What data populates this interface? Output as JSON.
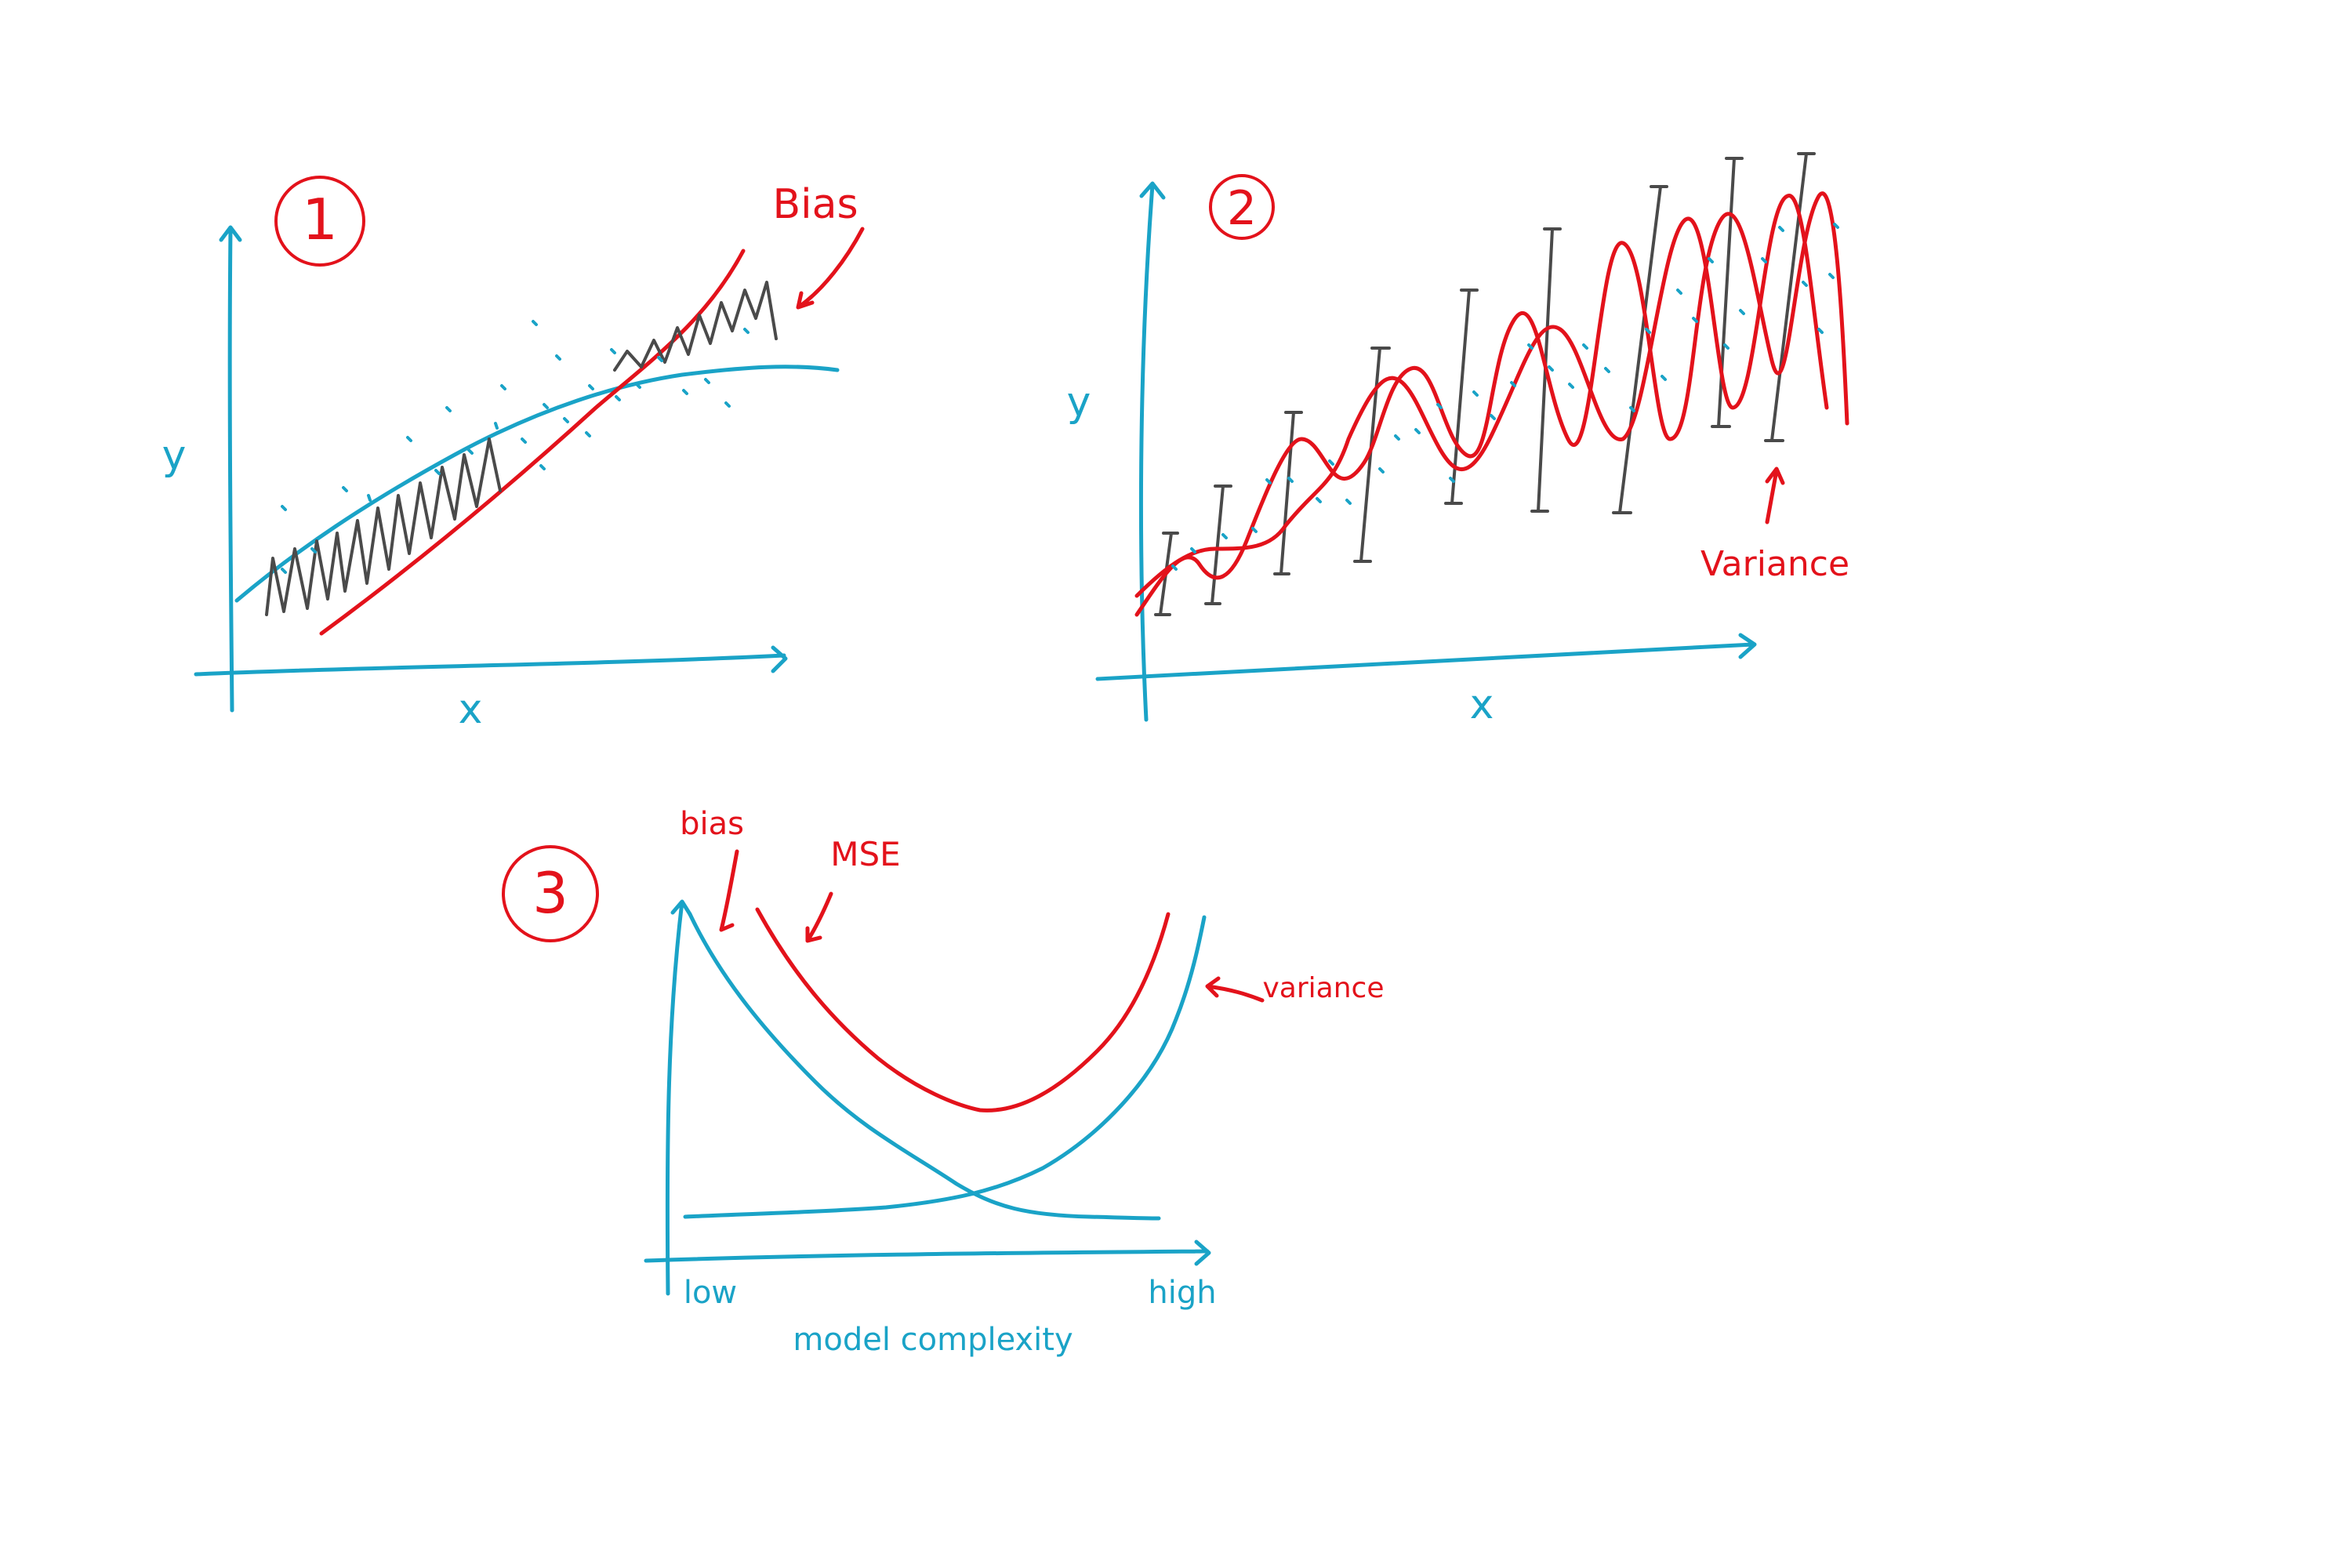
{
  "panel1": {
    "number": "1",
    "y_label": "y",
    "x_label": "x",
    "bias_label": "Bias"
  },
  "panel2": {
    "number": "2",
    "y_label": "y",
    "x_label": "x",
    "variance_label": "Variance"
  },
  "panel3": {
    "number": "3",
    "bias_label": "bias",
    "mse_label": "MSE",
    "variance_label": "variance",
    "x_low": "low",
    "x_high": "high",
    "x_label": "model complexity"
  },
  "colors": {
    "axis": "#1aa3c7",
    "fit": "#e3121b",
    "error": "#4a4a4a"
  }
}
